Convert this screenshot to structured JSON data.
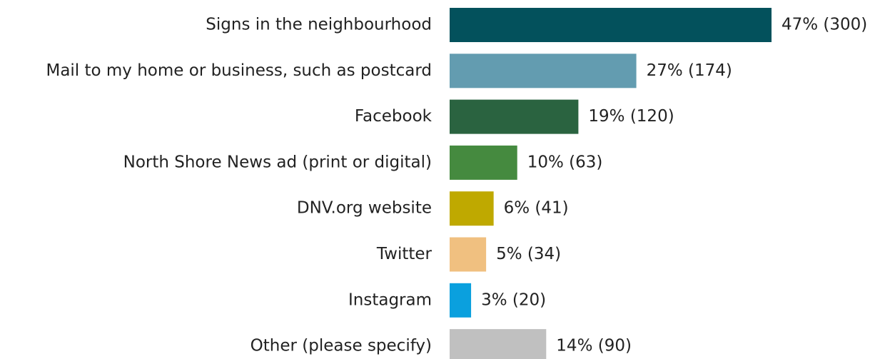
{
  "chart_data": {
    "type": "hbar",
    "categories": [
      "Signs in the neighbourhood",
      "Mail to my home or business, such as postcard",
      "Facebook",
      "North Shore News ad (print or digital)",
      "DNV.org website",
      "Twitter",
      "Instagram",
      "Other (please specify)"
    ],
    "values": [
      300,
      174,
      120,
      63,
      41,
      34,
      20,
      90
    ],
    "value_labels": [
      "47% (300)",
      "27% (174)",
      "19% (120)",
      "10% (63)",
      "6% (41)",
      "5% (34)",
      "3% (20)",
      "14% (90)"
    ],
    "colors": [
      "#03515c",
      "#639cb0",
      "#2a6340",
      "#458a3f",
      "#bfa900",
      "#f0c080",
      "#0aa0de",
      "#c0c0c0"
    ]
  }
}
